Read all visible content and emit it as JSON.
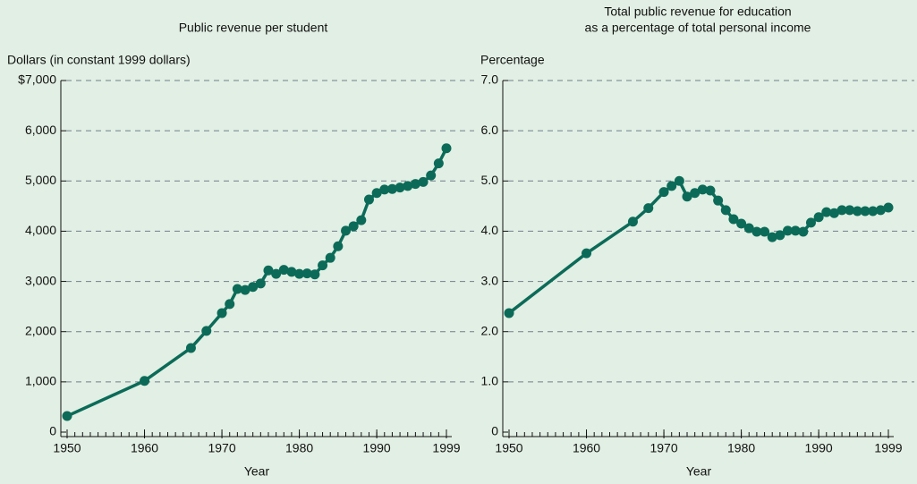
{
  "chart_data": [
    {
      "type": "line",
      "title": [
        "Public revenue per student"
      ],
      "ylabel": "Dollars (in constant 1999 dollars)",
      "xlabel": "Year",
      "x": [
        1950,
        1960,
        1966,
        1968,
        1970,
        1971,
        1972,
        1973,
        1974,
        1975,
        1976,
        1977,
        1978,
        1979,
        1980,
        1981,
        1982,
        1983,
        1984,
        1985,
        1986,
        1987,
        1988,
        1989,
        1990,
        1991,
        1992,
        1993,
        1994,
        1995,
        1996,
        1997,
        1998,
        1999
      ],
      "series": [
        {
          "name": "Public revenue per student",
          "color": "#0b6b58",
          "values": [
            320,
            1020,
            1675,
            2015,
            2370,
            2550,
            2850,
            2830,
            2890,
            2960,
            3220,
            3150,
            3230,
            3190,
            3150,
            3160,
            3140,
            3320,
            3470,
            3700,
            4010,
            4100,
            4220,
            4630,
            4760,
            4830,
            4840,
            4870,
            4900,
            4940,
            4980,
            5110,
            5350,
            5650
          ]
        }
      ],
      "xlim": [
        1950,
        1999
      ],
      "xticks": [
        1950,
        1960,
        1970,
        1980,
        1990,
        1999
      ],
      "ylim": [
        0,
        7000
      ],
      "yticks": [
        0,
        {
          "value": 1000,
          "label": "1,000"
        },
        {
          "value": 2000,
          "label": "2,000"
        },
        {
          "value": 3000,
          "label": "3,000"
        },
        {
          "value": 4000,
          "label": "4,000"
        },
        {
          "value": 5000,
          "label": "5,000"
        },
        {
          "value": 6000,
          "label": "6,000"
        },
        {
          "value": 7000,
          "label": "$7,000"
        }
      ],
      "grid": true
    },
    {
      "type": "line",
      "title": [
        "Total public revenue for education",
        "as a percentage of total personal income"
      ],
      "ylabel": "Percentage",
      "xlabel": "Year",
      "x": [
        1950,
        1960,
        1966,
        1968,
        1970,
        1971,
        1972,
        1973,
        1974,
        1975,
        1976,
        1977,
        1978,
        1979,
        1980,
        1981,
        1982,
        1983,
        1984,
        1985,
        1986,
        1987,
        1988,
        1989,
        1990,
        1991,
        1992,
        1993,
        1994,
        1995,
        1996,
        1997,
        1998,
        1999
      ],
      "series": [
        {
          "name": "Total public revenue for education as a percentage of total personal income",
          "color": "#0b6b58",
          "values": [
            2.37,
            3.56,
            4.19,
            4.46,
            4.78,
            4.9,
            5.0,
            4.69,
            4.76,
            4.83,
            4.81,
            4.61,
            4.42,
            4.24,
            4.15,
            4.06,
            3.99,
            3.99,
            3.88,
            3.92,
            4.01,
            4.01,
            3.99,
            4.17,
            4.28,
            4.38,
            4.36,
            4.42,
            4.42,
            4.4,
            4.4,
            4.4,
            4.42,
            4.47
          ]
        }
      ],
      "xlim": [
        1950,
        1999
      ],
      "xticks": [
        1950,
        1960,
        1970,
        1980,
        1990,
        1999
      ],
      "ylim": [
        0,
        7
      ],
      "yticks": [
        0,
        {
          "value": 1,
          "label": "1.0"
        },
        {
          "value": 2,
          "label": "2.0"
        },
        {
          "value": 3,
          "label": "3.0"
        },
        {
          "value": 4,
          "label": "4.0"
        },
        {
          "value": 5,
          "label": "5.0"
        },
        {
          "value": 6,
          "label": "6.0"
        },
        {
          "value": 7,
          "label": "7.0"
        }
      ],
      "grid": true
    }
  ]
}
